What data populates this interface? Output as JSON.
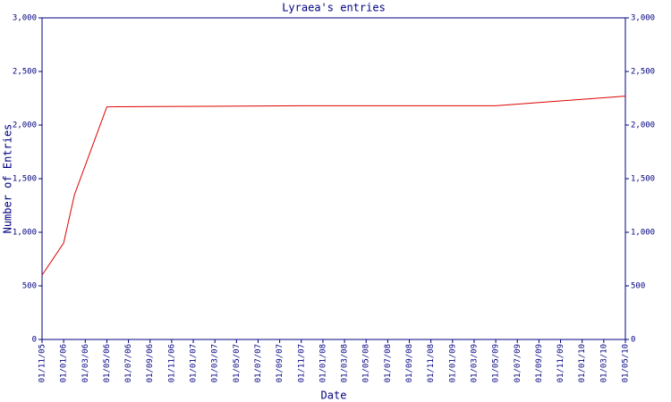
{
  "chart_data": {
    "type": "line",
    "title": "Lyraea's entries",
    "x_label": "Date",
    "y_label": "Number of Entries",
    "x": [
      "01/11/05",
      "01/01/06",
      "01/02/06",
      "01/05/06",
      "01/11/07",
      "01/05/09",
      "01/05/10"
    ],
    "series": [
      {
        "name": "Entries",
        "color": "#dd0000",
        "values": [
          600,
          900,
          1350,
          2170,
          2180,
          2180,
          2270
        ]
      }
    ],
    "xlim": [
      "01/11/05",
      "01/05/10"
    ],
    "xticks": [
      "01/11/05",
      "01/01/06",
      "01/03/06",
      "01/05/06",
      "01/07/06",
      "01/09/06",
      "01/11/06",
      "01/01/07",
      "01/03/07",
      "01/05/07",
      "01/07/07",
      "01/09/07",
      "01/11/07",
      "01/01/08",
      "01/03/08",
      "01/05/08",
      "01/07/08",
      "01/09/08",
      "01/11/08",
      "01/01/09",
      "01/03/09",
      "01/05/09",
      "01/07/09",
      "01/09/09",
      "01/11/09",
      "01/01/10",
      "01/03/10",
      "01/05/10"
    ],
    "ylim": [
      0,
      3000
    ],
    "yticks": [
      0,
      500,
      {
        "value": 1000,
        "label": "1,000"
      },
      {
        "value": 1500,
        "label": "1,500"
      },
      {
        "value": 2000,
        "label": "2,000"
      },
      {
        "value": 2500,
        "label": "2,500"
      },
      {
        "value": 3000,
        "label": "3,000"
      }
    ],
    "axis_color": "#000080"
  }
}
